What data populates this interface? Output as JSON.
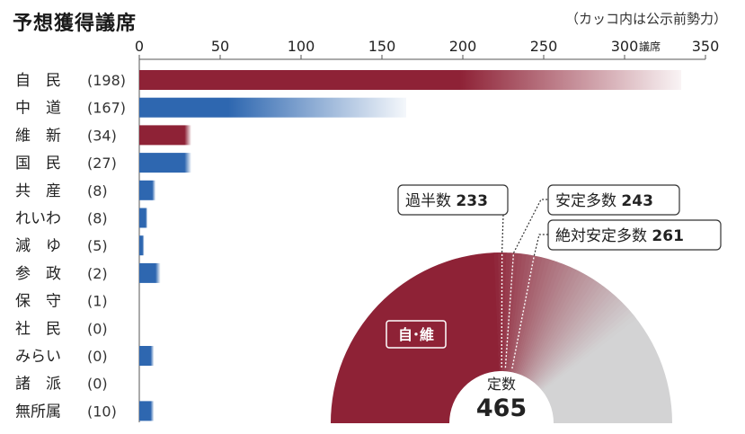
{
  "title": "予想獲得議席",
  "note": "（カッコ内は公示前勢力）",
  "colors": {
    "ldp": "#8e2236",
    "opposition": "#2e67b0",
    "gray": "#d3d3d4",
    "axis": "#555555"
  },
  "chart_data": [
    {
      "type": "bar",
      "orientation": "horizontal",
      "x_unit": "議席",
      "xlim": [
        0,
        350
      ],
      "xticks": [
        0,
        50,
        100,
        150,
        200,
        250,
        300,
        350
      ],
      "categories": [
        {
          "name": "自　民",
          "prev": "(198)",
          "value": 198,
          "upper": 335,
          "color": "ldp"
        },
        {
          "name": "中　道",
          "prev": "(167)",
          "value": 55,
          "upper": 165,
          "color": "opposition"
        },
        {
          "name": "維　新",
          "prev": "(34)",
          "value": 28,
          "upper": 32,
          "color": "ldp"
        },
        {
          "name": "国　民",
          "prev": "(27)",
          "value": 28,
          "upper": 32,
          "color": "opposition"
        },
        {
          "name": "共　産",
          "prev": "(8)",
          "value": 8,
          "upper": 10,
          "color": "opposition"
        },
        {
          "name": "れいわ",
          "prev": "(8)",
          "value": 4,
          "upper": 5,
          "color": "opposition"
        },
        {
          "name": "減　ゆ",
          "prev": "(5)",
          "value": 2,
          "upper": 3,
          "color": "opposition"
        },
        {
          "name": "参　政",
          "prev": "(2)",
          "value": 10,
          "upper": 13,
          "color": "opposition"
        },
        {
          "name": "保　守",
          "prev": "(1)",
          "value": 0,
          "upper": 0,
          "color": "opposition"
        },
        {
          "name": "社　民",
          "prev": "(0)",
          "value": 0,
          "upper": 0,
          "color": "opposition"
        },
        {
          "name": "みらい",
          "prev": "(0)",
          "value": 7,
          "upper": 9,
          "color": "opposition"
        },
        {
          "name": "諸　派",
          "prev": "(0)",
          "value": 0,
          "upper": 0,
          "color": "opposition"
        },
        {
          "name": "無所属",
          "prev": "(10)",
          "value": 7,
          "upper": 9,
          "color": "opposition"
        }
      ]
    },
    {
      "type": "pie",
      "variant": "semicircle",
      "total": 465,
      "center_label": "定数",
      "center_value": "465",
      "bloc_label": "自･維",
      "bloc_solid": 226,
      "bloc_upper": 367,
      "thresholds": [
        {
          "label": "過半数",
          "value": 233
        },
        {
          "label": "安定多数",
          "value": 243
        },
        {
          "label": "絶対安定多数",
          "value": 261
        }
      ]
    }
  ]
}
